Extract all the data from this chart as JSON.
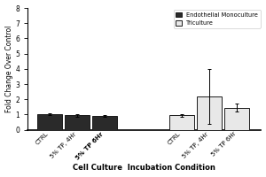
{
  "groups": [
    {
      "label": "Endothelial Monoculture",
      "categories": [
        "CTRL",
        "5% TP, 4Hr",
        "5% TP 6Hr"
      ],
      "values": [
        1.0,
        0.95,
        0.9
      ],
      "errors": [
        0.06,
        0.07,
        0.06
      ],
      "color": "#2a2a2a",
      "edgecolor": "#1a1a1a"
    },
    {
      "label": "Triculture",
      "categories": [
        "CTRL",
        "5% TP, 4Hr",
        "5% TP 6Hr"
      ],
      "values": [
        0.95,
        2.18,
        1.45
      ],
      "errors": [
        0.08,
        1.8,
        0.25
      ],
      "color": "#e8e8e8",
      "edgecolor": "#1a1a1a"
    }
  ],
  "ylabel": "Fold Change Over Control",
  "xlabel": "Cell Culture  Incubation Condition",
  "ylim": [
    0,
    8
  ],
  "yticks": [
    0,
    1,
    2,
    3,
    4,
    5,
    6,
    7,
    8
  ],
  "legend_labels": [
    "Endothelial Monoculture",
    "Triculture"
  ],
  "legend_colors": [
    "#2a2a2a",
    "#e8e8e8"
  ],
  "legend_edgecolors": [
    "#1a1a1a",
    "#1a1a1a"
  ],
  "bg_color": "#ffffff"
}
